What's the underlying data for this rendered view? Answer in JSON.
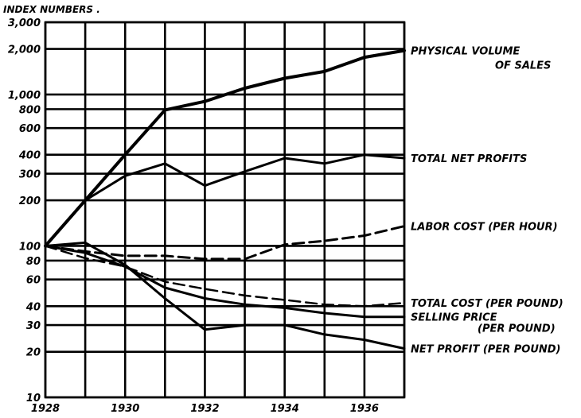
{
  "chart_data": {
    "type": "line",
    "title": "INDEX NUMBERS .",
    "y_scale": "log",
    "ylim": [
      10,
      3000
    ],
    "xlim": [
      1928,
      1937
    ],
    "x": [
      1928,
      1929,
      1930,
      1931,
      1932,
      1933,
      1934,
      1935,
      1936,
      1937
    ],
    "x_tick_labels": [
      "1928",
      "1930",
      "1932",
      "1934",
      "1936"
    ],
    "x_tick_values": [
      1928,
      1930,
      1932,
      1934,
      1936
    ],
    "y_tick_labels": [
      "10",
      "20",
      "30",
      "40",
      "60",
      "80",
      "100",
      "200",
      "300",
      "400",
      "600",
      "800",
      "1,000",
      "2,000",
      "3,000"
    ],
    "y_tick_values": [
      10,
      20,
      30,
      40,
      60,
      80,
      100,
      200,
      300,
      400,
      600,
      800,
      1000,
      2000,
      3000
    ],
    "grid": true,
    "series": [
      {
        "name": "PHYSICAL VOLUME OF SALES",
        "label_lines": [
          "PHYSICAL VOLUME",
          "OF SALES"
        ],
        "style": "solid",
        "width": 4,
        "values": [
          100,
          200,
          400,
          790,
          900,
          1100,
          1280,
          1420,
          1760,
          1950
        ]
      },
      {
        "name": "TOTAL NET PROFITS",
        "label_lines": [
          "TOTAL NET PROFITS"
        ],
        "style": "solid",
        "width": 3,
        "values": [
          100,
          200,
          290,
          350,
          250,
          310,
          380,
          350,
          400,
          380
        ]
      },
      {
        "name": "LABOR COST (PER HOUR)",
        "label_lines": [
          "LABOR COST (PER HOUR)"
        ],
        "style": "dashed",
        "width": 3,
        "values": [
          100,
          92,
          86,
          86,
          82,
          82,
          102,
          108,
          117,
          135
        ]
      },
      {
        "name": "TOTAL COST (PER POUND)",
        "label_lines": [
          "TOTAL COST (PER POUND)"
        ],
        "style": "dashed",
        "width": 2.5,
        "values": [
          100,
          83,
          73,
          58,
          52,
          47,
          44,
          41,
          40,
          42
        ]
      },
      {
        "name": "SELLING PRICE (PER POUND)",
        "label_lines": [
          "SELLING PRICE",
          "(PER POUND)"
        ],
        "style": "solid",
        "width": 3,
        "values": [
          100,
          90,
          73,
          53,
          45,
          41,
          39,
          36,
          34,
          34
        ]
      },
      {
        "name": "NET PROFIT (PER POUND)",
        "label_lines": [
          "NET PROFIT (PER POUND)"
        ],
        "style": "solid",
        "width": 3,
        "values": [
          100,
          105,
          75,
          45,
          28,
          30,
          30,
          26,
          24,
          21
        ]
      }
    ]
  }
}
